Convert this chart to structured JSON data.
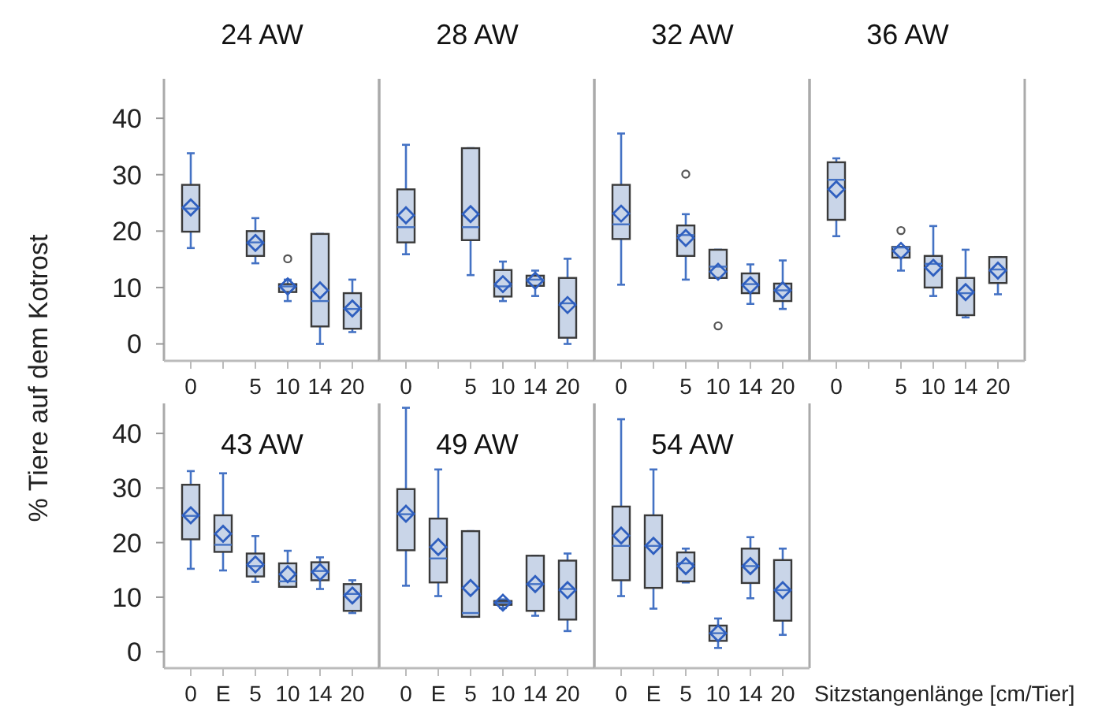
{
  "chart_data": [
    {
      "type": "box",
      "title": "24 AW",
      "ylabel": "% Tiere auf dem Kotrost",
      "categories": [
        "0",
        null,
        "5",
        "10",
        "14",
        "20"
      ],
      "color": "#c9d5e8",
      "ylim": [
        -3,
        47
      ],
      "yticks": [
        0,
        10,
        20,
        30,
        40
      ],
      "boxes": [
        {
          "low": 17.0,
          "q1": 19.9,
          "median": 24.0,
          "q3": 28.2,
          "high": 33.8,
          "mean": 24.2
        },
        null,
        {
          "low": 14.3,
          "q1": 15.6,
          "median": 18.0,
          "q3": 20.0,
          "high": 22.3,
          "mean": 17.9
        },
        {
          "low": 7.6,
          "q1": 9.2,
          "median": 10.2,
          "q3": 10.6,
          "high": 11.4,
          "mean": 10.2,
          "outliers": [
            15.1
          ]
        },
        {
          "low": 0,
          "q1": 3.1,
          "median": 7.6,
          "q3": 19.5,
          "high": 19.5,
          "mean": 9.5
        },
        {
          "low": 2.1,
          "q1": 2.7,
          "median": 6.2,
          "q3": 9.0,
          "high": 11.4,
          "mean": 6.3
        }
      ]
    },
    {
      "type": "box",
      "title": "28 AW",
      "categories": [
        "0",
        null,
        "5",
        "10",
        "14",
        "20"
      ],
      "color": "#c9d5e8",
      "ylim": [
        -3,
        47
      ],
      "yticks": [
        0,
        10,
        20,
        30,
        40
      ],
      "tick_labels": "x",
      "boxes": [
        {
          "low": 15.9,
          "q1": 18.0,
          "median": 20.7,
          "q3": 27.4,
          "high": 35.3,
          "mean": 22.8
        },
        null,
        {
          "low": 12.2,
          "q1": 18.4,
          "median": 20.7,
          "q3": 34.7,
          "high": 34.7,
          "mean": 23.0
        },
        {
          "low": 7.6,
          "q1": 8.4,
          "median": 10.2,
          "q3": 13.1,
          "high": 14.6,
          "mean": 10.6
        },
        {
          "low": 8.5,
          "q1": 10.3,
          "median": 11.4,
          "q3": 12.1,
          "high": 13.0,
          "mean": 11.2
        },
        {
          "low": 0,
          "q1": 1.1,
          "median": 7.2,
          "q3": 11.7,
          "high": 15.1,
          "mean": 6.9
        }
      ]
    },
    {
      "type": "box",
      "title": "32 AW",
      "categories": [
        "0",
        null,
        "5",
        "10",
        "14",
        "20"
      ],
      "color": "#c9d5e8",
      "ylim": [
        -3,
        47
      ],
      "yticks": [
        0,
        10,
        20,
        30,
        40
      ],
      "tick_labels": "x",
      "boxes": [
        {
          "low": 10.5,
          "q1": 18.6,
          "median": 21.2,
          "q3": 28.2,
          "high": 37.3,
          "mean": 23.1
        },
        null,
        {
          "low": 11.4,
          "q1": 15.6,
          "median": 19.3,
          "q3": 21.0,
          "high": 23.0,
          "mean": 18.8,
          "outliers": [
            30.1
          ]
        },
        {
          "low": 11.7,
          "q1": 11.7,
          "median": 13.7,
          "q3": 16.7,
          "high": 16.7,
          "mean": 12.8,
          "outliers": [
            3.2
          ]
        },
        {
          "low": 7.1,
          "q1": 9.0,
          "median": 10.6,
          "q3": 12.5,
          "high": 14.1,
          "mean": 10.4
        },
        {
          "low": 6.2,
          "q1": 7.6,
          "median": 9.5,
          "q3": 10.7,
          "high": 14.8,
          "mean": 9.5
        }
      ]
    },
    {
      "type": "box",
      "title": "36 AW",
      "categories": [
        "0",
        null,
        "5",
        "10",
        "14",
        "20"
      ],
      "color": "#c9d5e8",
      "ylim": [
        -3,
        47
      ],
      "yticks": [
        0,
        10,
        20,
        30,
        40
      ],
      "tick_labels": "x",
      "boxes": [
        {
          "low": 19.1,
          "q1": 22.0,
          "median": 29.1,
          "q3": 32.2,
          "high": 32.9,
          "mean": 27.4
        },
        null,
        {
          "low": 13.0,
          "q1": 15.3,
          "median": 17.1,
          "q3": 17.2,
          "high": 17.2,
          "mean": 16.5,
          "outliers": [
            20.1
          ]
        },
        {
          "low": 8.5,
          "q1": 10.0,
          "median": 14.2,
          "q3": 15.6,
          "high": 20.9,
          "mean": 13.5
        },
        {
          "low": 4.7,
          "q1": 5.1,
          "median": 9.0,
          "q3": 11.7,
          "high": 16.7,
          "mean": 9.2
        },
        {
          "low": 8.8,
          "q1": 10.8,
          "median": 13.2,
          "q3": 15.4,
          "high": 15.4,
          "mean": 13.0
        }
      ]
    },
    {
      "type": "box",
      "title": "43 AW",
      "categories": [
        "0",
        "E",
        "5",
        "10",
        "14",
        "20"
      ],
      "color": "#c9d5e8",
      "ylim": [
        -3,
        45.5
      ],
      "yticks": [
        0,
        10,
        20,
        30,
        40
      ],
      "boxes": [
        {
          "low": 15.2,
          "q1": 20.6,
          "median": 24.9,
          "q3": 30.6,
          "high": 33.1,
          "mean": 25.0
        },
        {
          "low": 14.9,
          "q1": 18.3,
          "median": 19.6,
          "q3": 25.0,
          "high": 32.7,
          "mean": 21.6
        },
        {
          "low": 12.8,
          "q1": 13.8,
          "median": 15.7,
          "q3": 18.0,
          "high": 21.2,
          "mean": 16.0
        },
        {
          "low": 11.9,
          "q1": 11.9,
          "median": 12.9,
          "q3": 16.2,
          "high": 18.5,
          "mean": 14.2
        },
        {
          "low": 11.5,
          "q1": 13.1,
          "median": 14.8,
          "q3": 16.4,
          "high": 17.3,
          "mean": 14.6
        },
        {
          "low": 7.1,
          "q1": 7.5,
          "median": 10.6,
          "q3": 12.4,
          "high": 13.1,
          "mean": 10.3
        }
      ]
    },
    {
      "type": "box",
      "title": "49 AW",
      "categories": [
        "0",
        "E",
        "5",
        "10",
        "14",
        "20"
      ],
      "color": "#c9d5e8",
      "ylim": [
        -3,
        45.5
      ],
      "yticks": [
        0,
        10,
        20,
        30,
        40
      ],
      "tick_labels": "x",
      "boxes": [
        {
          "low": 12.1,
          "q1": 18.6,
          "median": 25.2,
          "q3": 29.8,
          "high": 44.7,
          "mean": 25.3
        },
        {
          "low": 10.2,
          "q1": 12.7,
          "median": 17.1,
          "q3": 24.4,
          "high": 33.4,
          "mean": 19.2
        },
        {
          "low": 6.4,
          "q1": 6.4,
          "median": 7.1,
          "q3": 22.1,
          "high": 22.1,
          "mean": 11.7
        },
        {
          "low": 8.0,
          "q1": 8.6,
          "median": 9.0,
          "q3": 9.3,
          "high": 9.6,
          "mean": 9.0
        },
        {
          "low": 6.6,
          "q1": 7.5,
          "median": 12.4,
          "q3": 17.6,
          "high": 17.6,
          "mean": 12.4
        },
        {
          "low": 3.8,
          "q1": 5.9,
          "median": 11.5,
          "q3": 16.7,
          "high": 18.0,
          "mean": 11.3
        }
      ]
    },
    {
      "type": "box",
      "title": "54 AW",
      "xlabel": "Sitzstangenlänge [cm/Tier]",
      "categories": [
        "0",
        "E",
        "5",
        "10",
        "14",
        "20"
      ],
      "color": "#c9d5e8",
      "ylim": [
        -3,
        45.5
      ],
      "yticks": [
        0,
        10,
        20,
        30,
        40
      ],
      "tick_labels": "x",
      "boxes": [
        {
          "low": 10.2,
          "q1": 13.1,
          "median": 19.4,
          "q3": 26.6,
          "high": 42.6,
          "mean": 21.3
        },
        {
          "low": 7.9,
          "q1": 11.7,
          "median": 19.4,
          "q3": 25.0,
          "high": 33.4,
          "mean": 19.4
        },
        {
          "low": 12.7,
          "q1": 12.9,
          "median": 16.2,
          "q3": 18.2,
          "high": 18.9,
          "mean": 15.7
        },
        {
          "low": 0.7,
          "q1": 2.0,
          "median": 3.4,
          "q3": 4.8,
          "high": 6.1,
          "mean": 3.4
        },
        {
          "low": 9.8,
          "q1": 12.6,
          "median": 15.7,
          "q3": 18.9,
          "high": 21.0,
          "mean": 15.7
        },
        {
          "low": 3.1,
          "q1": 5.7,
          "median": 11.3,
          "q3": 16.8,
          "high": 18.9,
          "mean": 11.3
        }
      ]
    }
  ]
}
